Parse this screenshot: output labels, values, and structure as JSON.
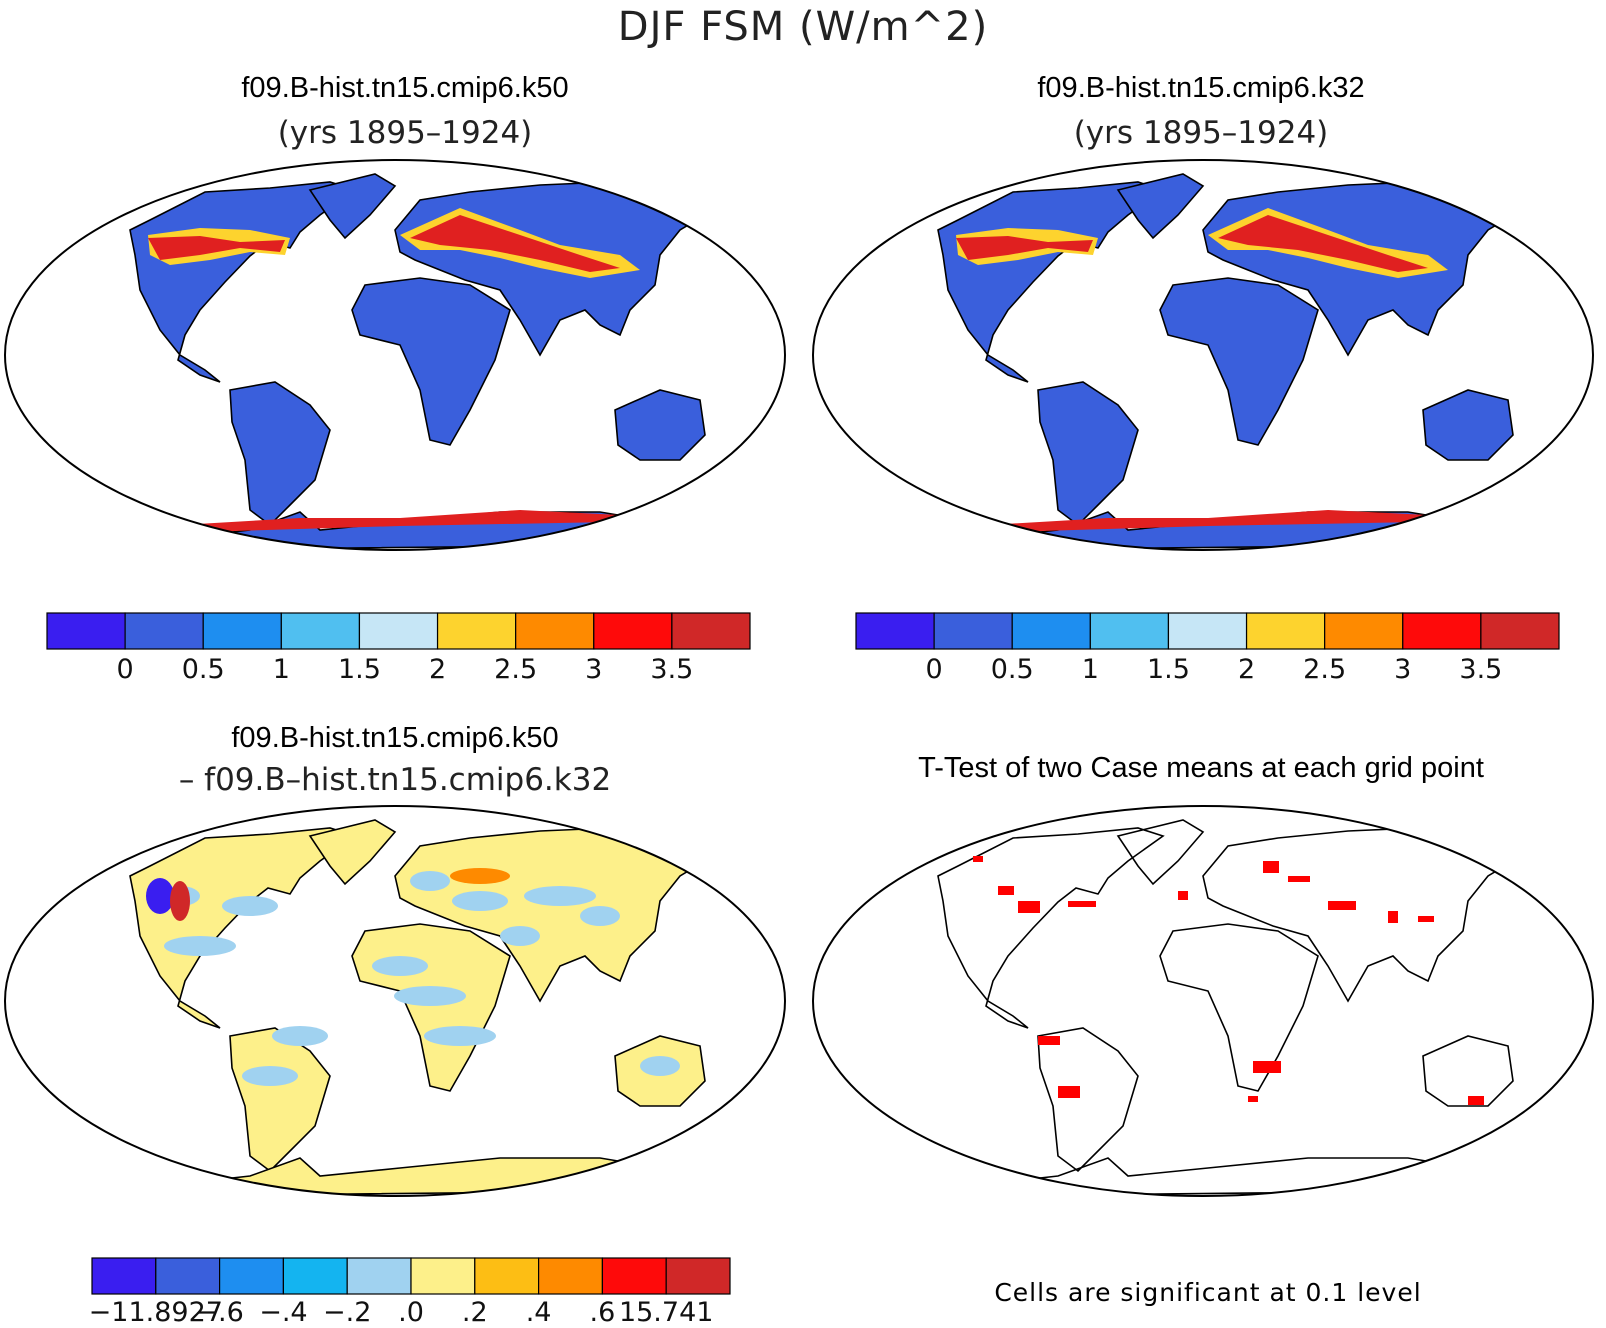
{
  "title": "DJF FSM (W/m^2)",
  "panels": [
    {
      "name": "f09.B-hist.tn15.cmip6.k50",
      "subtitle": "(yrs 1895–1924)"
    },
    {
      "name": "f09.B-hist.tn15.cmip6.k32",
      "subtitle": "(yrs 1895–1924)"
    },
    {
      "name": "f09.B-hist.tn15.cmip6.k50",
      "subtitle": "– f09.B–hist.tn15.cmip6.k32"
    },
    {
      "name": "T-Test of two Case means at each grid point",
      "subtitle": ""
    }
  ],
  "colorbar_abs": {
    "colors": [
      "#3a1ef0",
      "#3a5fdc",
      "#1e8ef0",
      "#50bff0",
      "#c6e6f6",
      "#fdd32e",
      "#fe8a00",
      "#fe0a0a",
      "#d02828"
    ],
    "labels": [
      "0",
      "0.5",
      "1",
      "1.5",
      "2",
      "2.5",
      "3",
      "3.5"
    ]
  },
  "colorbar_diff": {
    "colors": [
      "#3a1ef0",
      "#3a5fdc",
      "#1e8ef0",
      "#14b4f0",
      "#a0d2f0",
      "#fdf08a",
      "#fdbe14",
      "#fe8a00",
      "#fe0a0a",
      "#d02828"
    ],
    "labels": [
      "−11.8927",
      "−.6",
      "−.4",
      "−.2",
      ".0",
      ".2",
      ".4",
      ".6",
      "15.741"
    ]
  },
  "significance_note": "Cells are significant at 0.1 level",
  "map_colors": {
    "land_abs": "#3a5fdc",
    "hot": "#e02020",
    "warm": "#fdd32e",
    "diff_pos": "#fdf08a",
    "diff_neg": "#a0d2f0",
    "sig": "#fe0000"
  }
}
